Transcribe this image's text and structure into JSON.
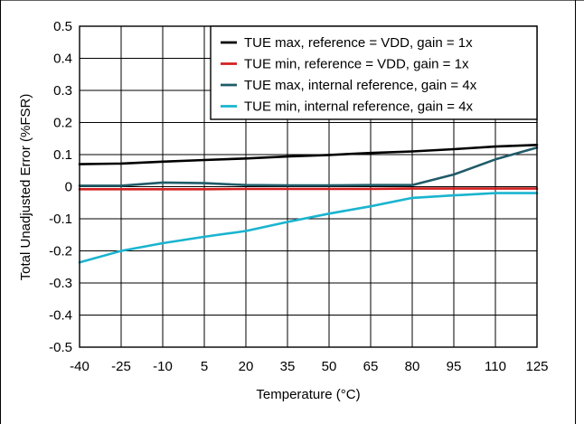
{
  "chart_data": {
    "type": "line",
    "title": "",
    "xlabel": "Temperature (°C)",
    "ylabel": "Total Unadjusted Error (%FSR)",
    "x": [
      -40,
      -25,
      -10,
      5,
      20,
      35,
      50,
      65,
      80,
      95,
      110,
      125
    ],
    "xlim": [
      -40,
      125
    ],
    "ylim": [
      -0.5,
      0.5
    ],
    "xticks": [
      "-40",
      "-25",
      "-10",
      "5",
      "20",
      "35",
      "50",
      "65",
      "80",
      "95",
      "110",
      "125"
    ],
    "yticks": [
      "0.5",
      "0.4",
      "0.3",
      "0.2",
      "0.1",
      "0",
      "-0.1",
      "-0.2",
      "-0.3",
      "-0.4",
      "-0.5"
    ],
    "grid": true,
    "legend_position": "top-right",
    "series": [
      {
        "name": "TUE max, reference = VDD, gain = 1x",
        "color": "#000000",
        "values": [
          0.07,
          0.072,
          0.078,
          0.083,
          0.088,
          0.094,
          0.099,
          0.105,
          0.11,
          0.117,
          0.125,
          0.13
        ]
      },
      {
        "name": "TUE min, reference = VDD, gain = 1x",
        "color": "#d42020",
        "values": [
          -0.008,
          -0.008,
          -0.008,
          -0.008,
          -0.007,
          -0.007,
          -0.007,
          -0.007,
          -0.006,
          -0.006,
          -0.006,
          -0.006
        ]
      },
      {
        "name": "TUE max, internal reference, gain = 4x",
        "color": "#1f5b68",
        "values": [
          0.003,
          0.003,
          0.013,
          0.011,
          0.005,
          0.004,
          0.004,
          0.005,
          0.005,
          0.038,
          0.085,
          0.122
        ]
      },
      {
        "name": "TUE min, internal reference, gain = 4x",
        "color": "#1ab4cf",
        "values": [
          -0.236,
          -0.2,
          -0.176,
          -0.156,
          -0.138,
          -0.11,
          -0.084,
          -0.061,
          -0.035,
          -0.027,
          -0.02,
          -0.02
        ]
      }
    ]
  }
}
